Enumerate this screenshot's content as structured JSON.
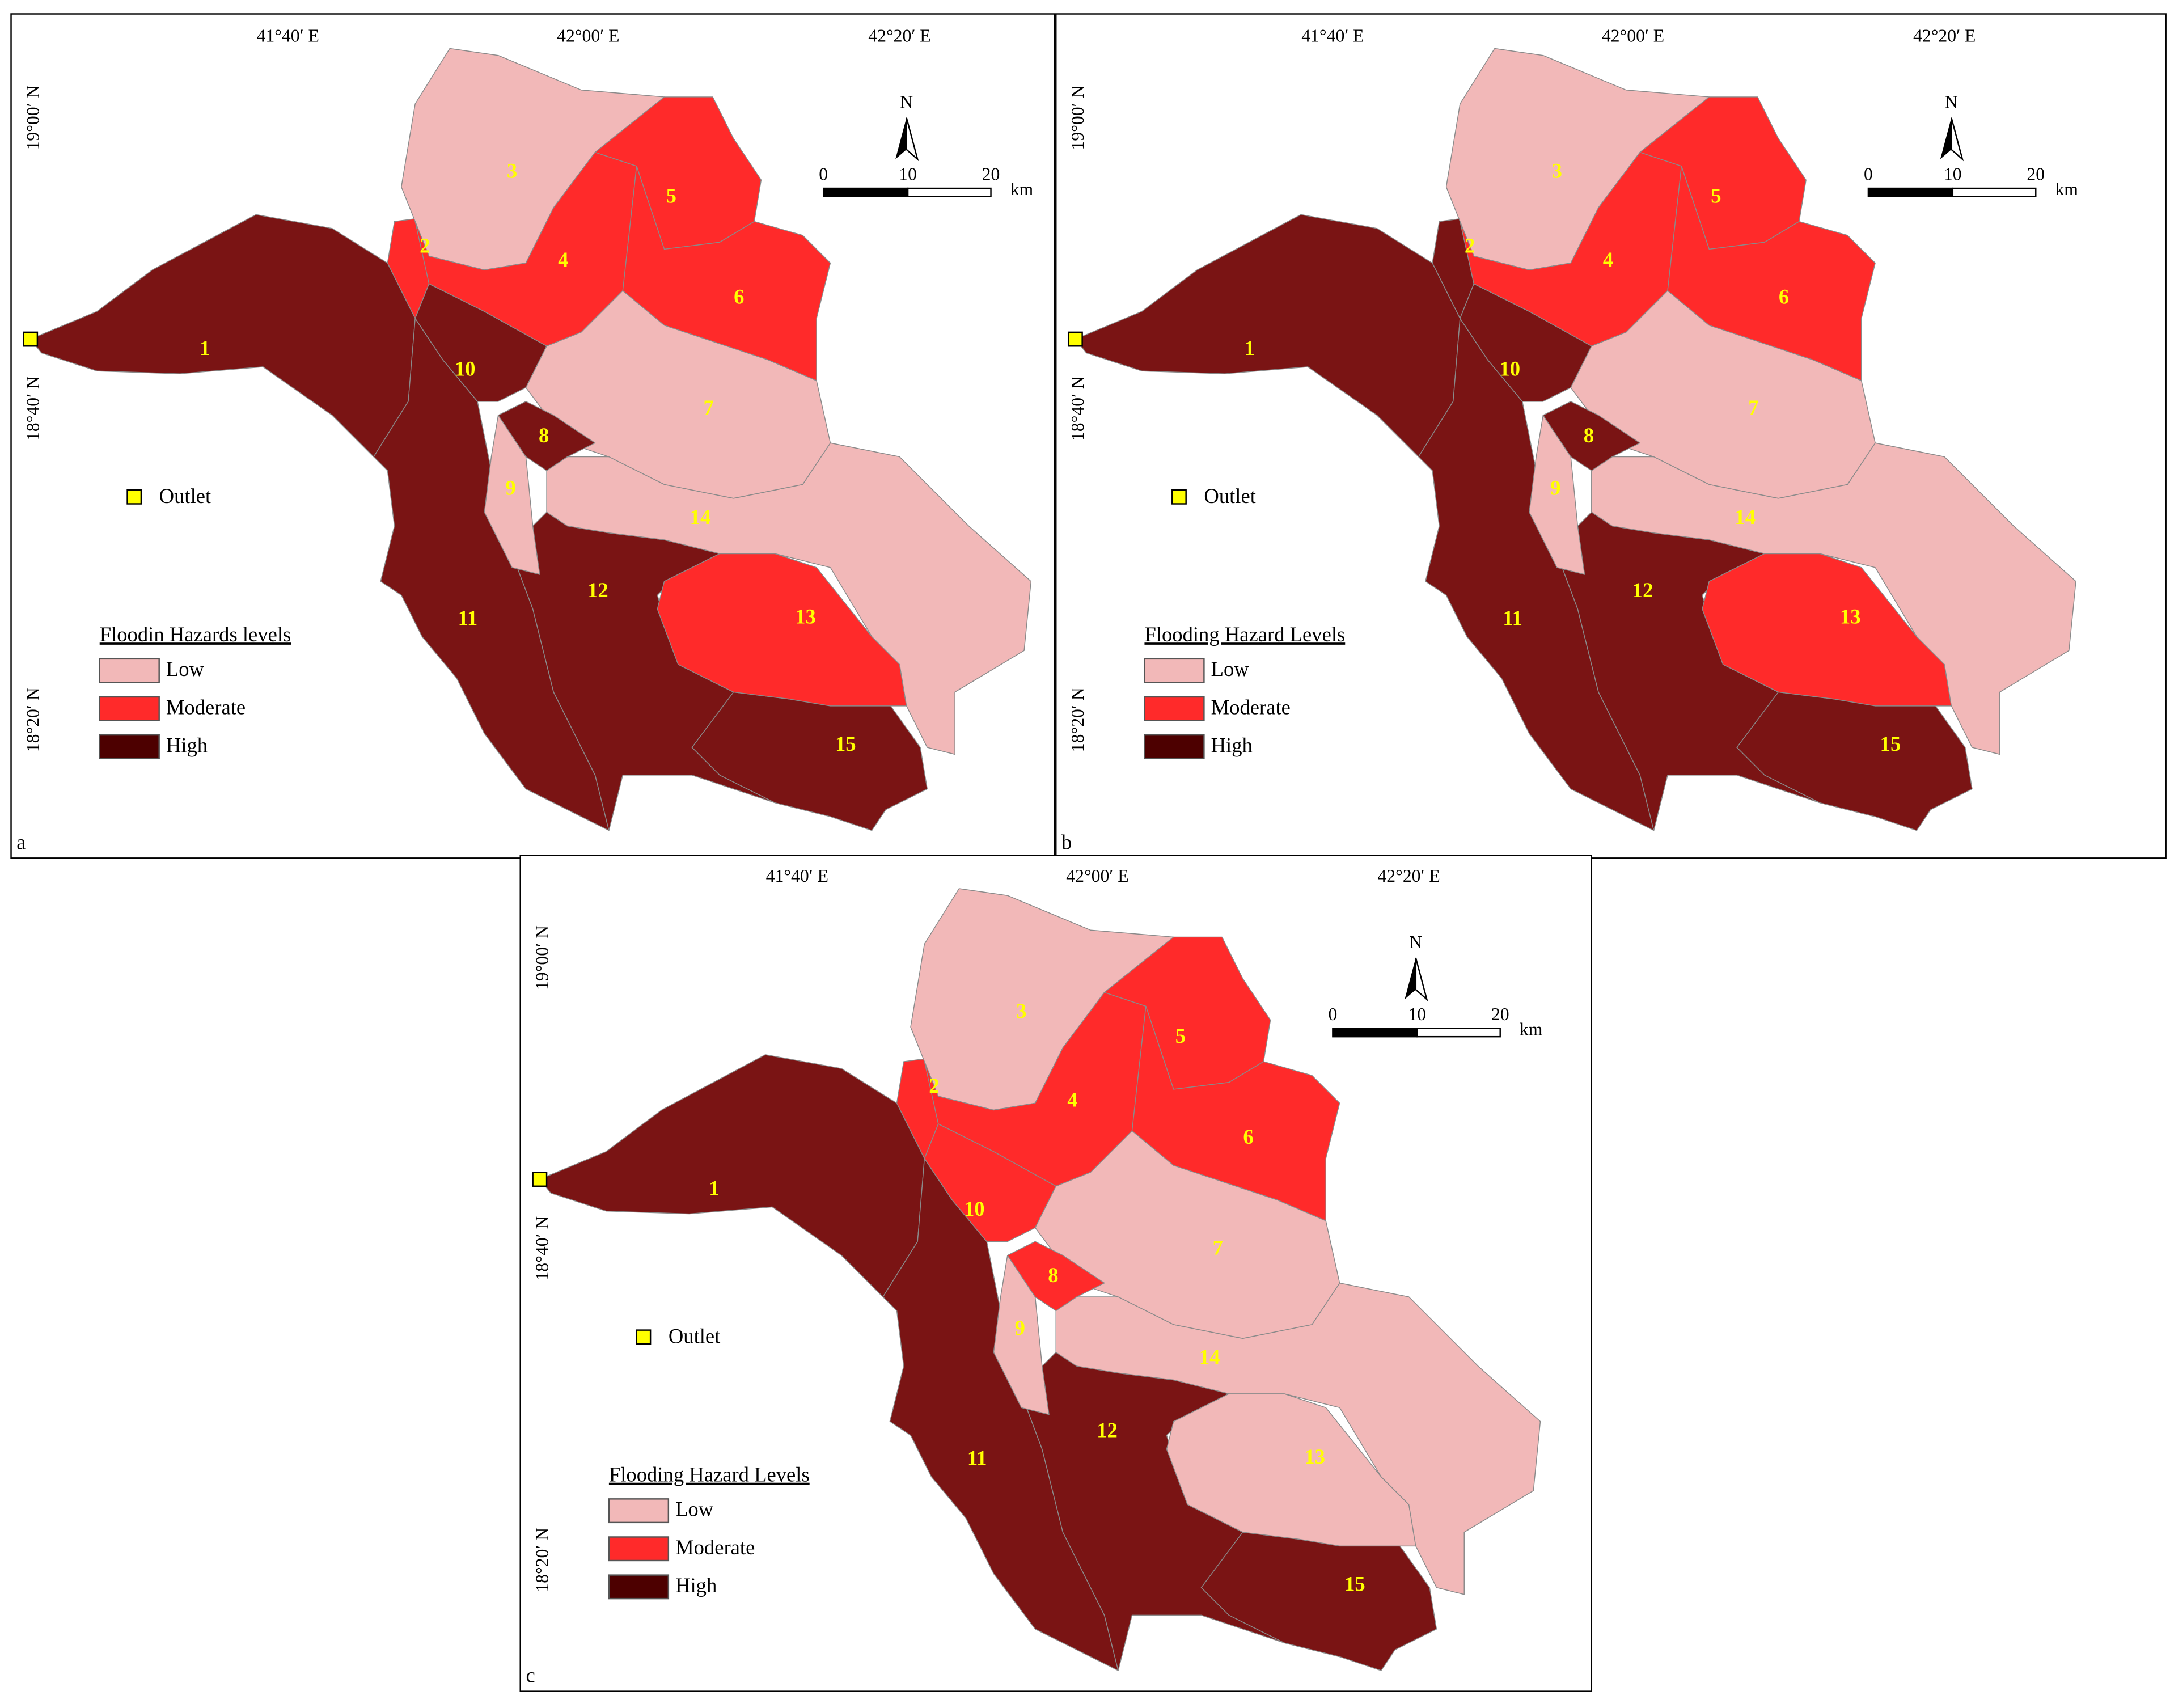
{
  "panels": [
    {
      "letter": "a",
      "lon_ticks": [
        "41°40′ E",
        "42°00′ E",
        "42°20′ E"
      ],
      "lat_ticks": [
        "19°00′ N",
        "18°40′ N",
        "18°20′ N"
      ],
      "north": "N",
      "scale_bar": [
        "0",
        "10",
        "20"
      ],
      "scale_unit": "km",
      "outlet": "Outlet",
      "legend": {
        "title": "Floodin Hazards levels",
        "items": [
          {
            "label": "Low",
            "color": "#f2b8b8"
          },
          {
            "label": "Moderate",
            "color": "#ff2a2a"
          },
          {
            "label": "High",
            "color": "#4d0000"
          }
        ]
      },
      "subbasins": [
        {
          "label": "1",
          "color": "#7a1414"
        },
        {
          "label": "2",
          "color": "#ff2a2a"
        },
        {
          "label": "3",
          "color": "#f2b8b8"
        },
        {
          "label": "4",
          "color": "#ff2a2a"
        },
        {
          "label": "5",
          "color": "#ff2a2a"
        },
        {
          "label": "6",
          "color": "#ff2a2a"
        },
        {
          "label": "7",
          "color": "#f2b8b8"
        },
        {
          "label": "8",
          "color": "#7a1414"
        },
        {
          "label": "9",
          "color": "#f2b8b8"
        },
        {
          "label": "10",
          "color": "#7a1414"
        },
        {
          "label": "11",
          "color": "#7a1414"
        },
        {
          "label": "12",
          "color": "#7a1414"
        },
        {
          "label": "13",
          "color": "#ff2a2a"
        },
        {
          "label": "14",
          "color": "#f2b8b8"
        },
        {
          "label": "15",
          "color": "#7a1414"
        }
      ]
    },
    {
      "letter": "b",
      "lon_ticks": [
        "41°40′ E",
        "42°00′ E",
        "42°20′ E"
      ],
      "lat_ticks": [
        "19°00′ N",
        "18°40′ N",
        "18°20′ N"
      ],
      "north": "N",
      "scale_bar": [
        "0",
        "10",
        "20"
      ],
      "scale_unit": "km",
      "outlet": "Outlet",
      "legend": {
        "title": "Flooding Hazard Levels",
        "items": [
          {
            "label": "Low",
            "color": "#f2b8b8"
          },
          {
            "label": "Moderate",
            "color": "#ff2a2a"
          },
          {
            "label": "High",
            "color": "#4d0000"
          }
        ]
      },
      "subbasins": [
        {
          "label": "1",
          "color": "#7a1414"
        },
        {
          "label": "2",
          "color": "#7a1414"
        },
        {
          "label": "3",
          "color": "#f2b8b8"
        },
        {
          "label": "4",
          "color": "#ff2a2a"
        },
        {
          "label": "5",
          "color": "#ff2a2a"
        },
        {
          "label": "6",
          "color": "#ff2a2a"
        },
        {
          "label": "7",
          "color": "#f2b8b8"
        },
        {
          "label": "8",
          "color": "#7a1414"
        },
        {
          "label": "9",
          "color": "#f2b8b8"
        },
        {
          "label": "10",
          "color": "#7a1414"
        },
        {
          "label": "11",
          "color": "#7a1414"
        },
        {
          "label": "12",
          "color": "#7a1414"
        },
        {
          "label": "13",
          "color": "#ff2a2a"
        },
        {
          "label": "14",
          "color": "#f2b8b8"
        },
        {
          "label": "15",
          "color": "#7a1414"
        }
      ]
    },
    {
      "letter": "c",
      "lon_ticks": [
        "41°40′ E",
        "42°00′ E",
        "42°20′ E"
      ],
      "lat_ticks": [
        "19°00′ N",
        "18°40′ N",
        "18°20′ N"
      ],
      "north": "N",
      "scale_bar": [
        "0",
        "10",
        "20"
      ],
      "scale_unit": "km",
      "outlet": "Outlet",
      "legend": {
        "title": "Flooding Hazard Levels",
        "items": [
          {
            "label": "Low",
            "color": "#f2b8b8"
          },
          {
            "label": "Moderate",
            "color": "#ff2a2a"
          },
          {
            "label": "High",
            "color": "#4d0000"
          }
        ]
      },
      "subbasins": [
        {
          "label": "1",
          "color": "#7a1414"
        },
        {
          "label": "2",
          "color": "#ff2a2a"
        },
        {
          "label": "3",
          "color": "#f2b8b8"
        },
        {
          "label": "4",
          "color": "#ff2a2a"
        },
        {
          "label": "5",
          "color": "#ff2a2a"
        },
        {
          "label": "6",
          "color": "#ff2a2a"
        },
        {
          "label": "7",
          "color": "#f2b8b8"
        },
        {
          "label": "8",
          "color": "#ff2a2a"
        },
        {
          "label": "9",
          "color": "#f2b8b8"
        },
        {
          "label": "10",
          "color": "#ff2a2a"
        },
        {
          "label": "11",
          "color": "#7a1414"
        },
        {
          "label": "12",
          "color": "#7a1414"
        },
        {
          "label": "13",
          "color": "#f2b8b8"
        },
        {
          "label": "14",
          "color": "#f2b8b8"
        },
        {
          "label": "15",
          "color": "#7a1414"
        }
      ]
    }
  ]
}
